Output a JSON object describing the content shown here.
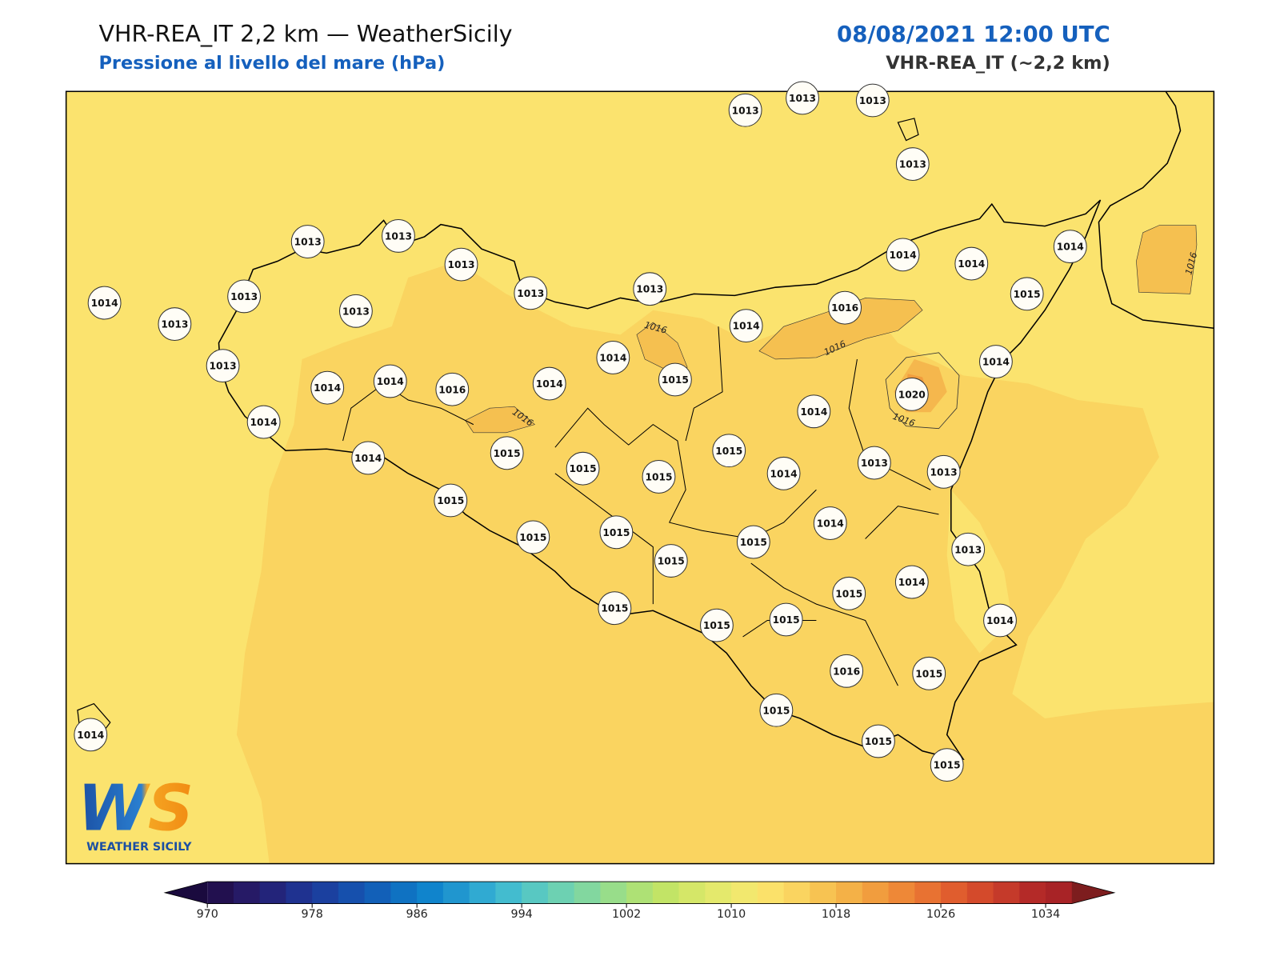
{
  "header": {
    "title": "VHR-REA_IT 2,2 km — WeatherSicily",
    "subtitle": "Pressione al livello del mare (hPa)",
    "datetime": "08/08/2021 12:00 UTC",
    "model": "VHR-REA_IT (~2,2 km)"
  },
  "stations": [
    1013,
    1013,
    1013,
    1013,
    1013,
    1013,
    1013,
    1013,
    1013,
    1014,
    1013,
    1013,
    1013,
    1014,
    1014,
    1014,
    1015,
    1016,
    1014,
    1014,
    1015,
    1014,
    1013,
    1014,
    1014,
    1016,
    1014,
    1014,
    1020,
    1014,
    1014,
    1015,
    1015,
    1015,
    1015,
    1014,
    1013,
    1013,
    1015,
    1015,
    1015,
    1015,
    1015,
    1014,
    1013,
    1015,
    1014,
    1014,
    1015,
    1015,
    1015,
    1016,
    1015,
    1015,
    1015,
    1015,
    1014
  ],
  "contour_labels": [
    1016,
    1016,
    1016,
    1016,
    1016
  ],
  "colorbar": {
    "lim": [
      970,
      1036
    ],
    "ticks": [
      970,
      978,
      986,
      994,
      1002,
      1010,
      1018,
      1026,
      1034
    ],
    "colors": [
      "#22104f",
      "#261a66",
      "#23247a",
      "#1f3290",
      "#1b409f",
      "#1650ad",
      "#1260b8",
      "#0f72c2",
      "#1084cc",
      "#2096cf",
      "#30aad2",
      "#43bccf",
      "#58c8c2",
      "#6dd1b2",
      "#82d79f",
      "#98dd8a",
      "#aee175",
      "#c2e466",
      "#d5e768",
      "#e4e96c",
      "#f2e86e",
      "#fbe16a",
      "#fad460",
      "#f7c352",
      "#f4b147",
      "#f19d3e",
      "#ee8837",
      "#e87232",
      "#e05d2e",
      "#d44a2b",
      "#c53a2a",
      "#b42a28",
      "#a82326"
    ],
    "under_color": "#1a0a3e",
    "over_color": "#7d1d1e"
  },
  "logo": {
    "mark": "WS",
    "name": "WEATHER SICILY"
  }
}
